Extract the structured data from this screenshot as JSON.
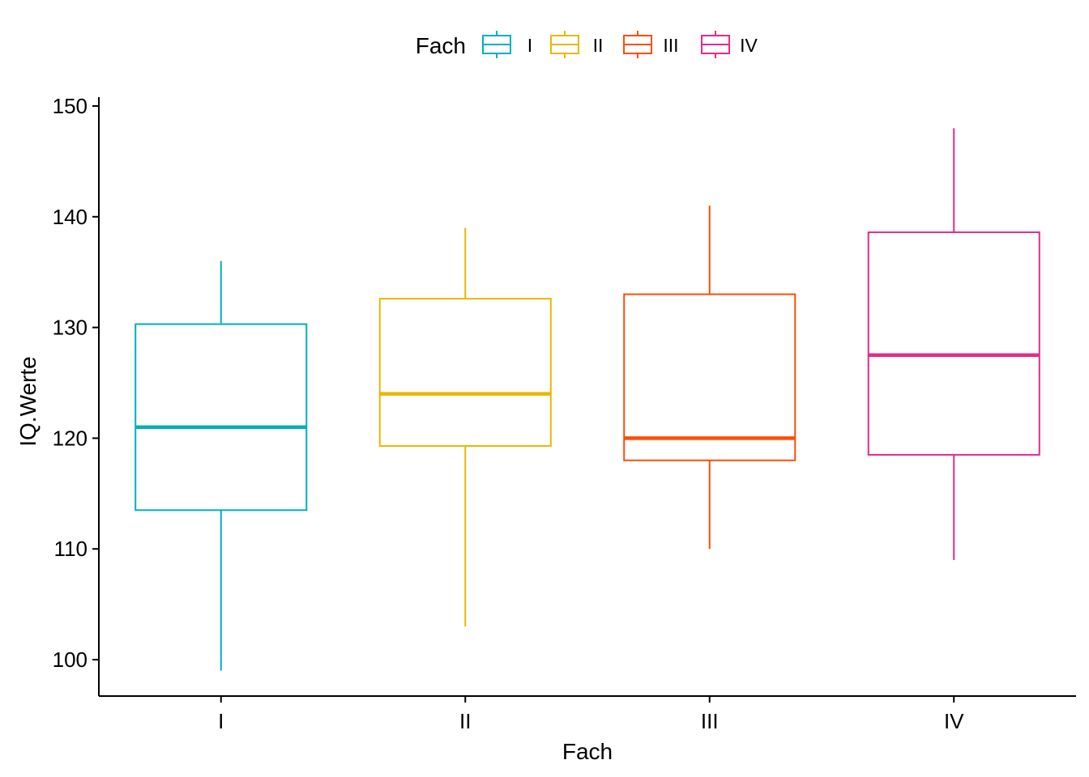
{
  "chart_data": {
    "type": "boxplot",
    "xlabel": "Fach",
    "ylabel": "IQ.Werte",
    "ylim": [
      97,
      150
    ],
    "yticks": [
      100,
      110,
      120,
      130,
      140,
      150
    ],
    "categories": [
      "I",
      "II",
      "III",
      "IV"
    ],
    "legend": {
      "title": "Fach",
      "position": "top",
      "entries": [
        "I",
        "II",
        "III",
        "IV"
      ]
    },
    "colors": {
      "I": "#00AFBB",
      "II": "#E7B800",
      "III": "#FC4E07",
      "IV": "#E7298A"
    },
    "boxes": [
      {
        "category": "I",
        "whisker_low": 99,
        "q1": 113.5,
        "median": 121,
        "q3": 130.3,
        "whisker_high": 136
      },
      {
        "category": "II",
        "whisker_low": 103,
        "q1": 119.3,
        "median": 124,
        "q3": 132.6,
        "whisker_high": 139
      },
      {
        "category": "III",
        "whisker_low": 110,
        "q1": 118,
        "median": 120,
        "q3": 133,
        "whisker_high": 141
      },
      {
        "category": "IV",
        "whisker_low": 109,
        "q1": 118.5,
        "median": 127.5,
        "q3": 138.6,
        "whisker_high": 148
      }
    ]
  }
}
